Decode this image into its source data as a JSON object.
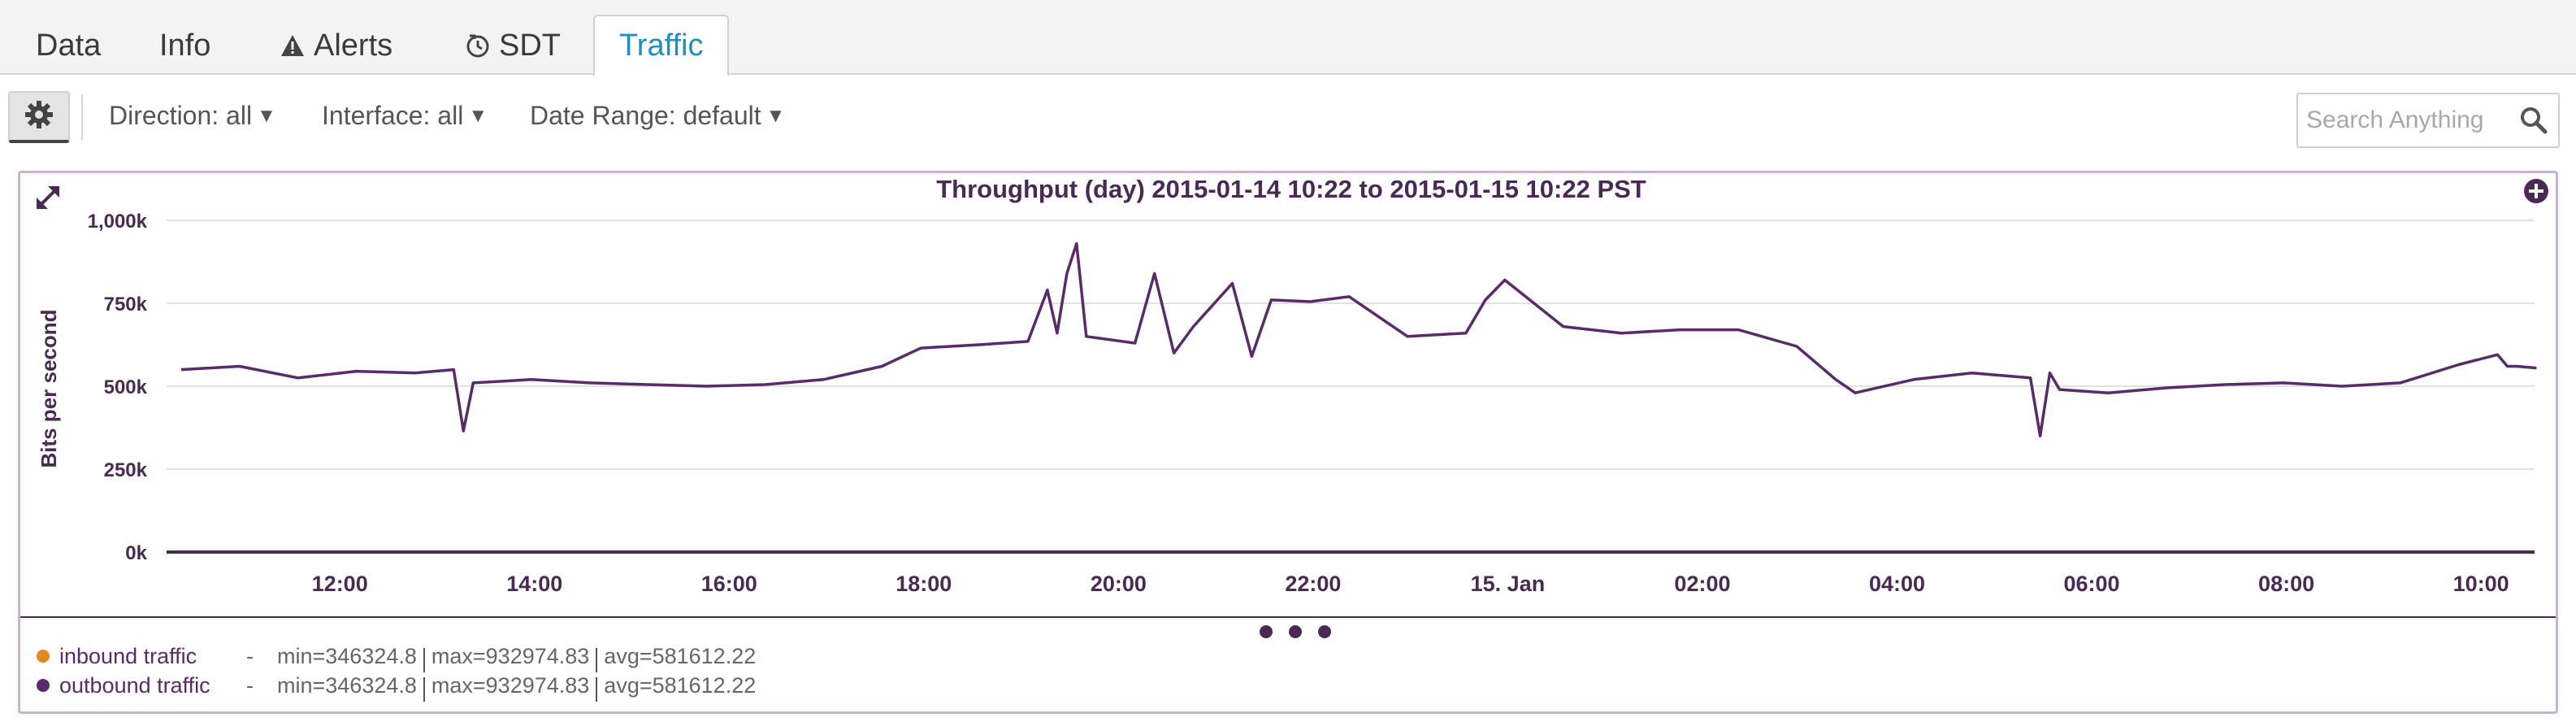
{
  "tabs": [
    {
      "label": "Data",
      "icon": null
    },
    {
      "label": "Info",
      "icon": null
    },
    {
      "label": "Alerts",
      "icon": "warning-icon"
    },
    {
      "label": "SDT",
      "icon": "clock-icon"
    },
    {
      "label": "Traffic",
      "icon": null,
      "active": true
    }
  ],
  "toolbar": {
    "settings_icon": "gear-icon",
    "direction": "Direction: all",
    "interface": "Interface: all",
    "date_range": "Date Range: default",
    "search_placeholder": "Search Anything"
  },
  "chart_panel": {
    "expand_icon": "expand-icon",
    "options_icon": "crosshair-plus-icon",
    "pager_dots": 3
  },
  "chart_data": {
    "type": "line",
    "title": "Throughput (day) 2015-01-14 10:22 to 2015-01-15 10:22 PST",
    "ylabel": "Bits per second",
    "xlabel": "",
    "y_ticks": [
      "0k",
      "250k",
      "500k",
      "750k",
      "1,000k"
    ],
    "ylim": [
      0,
      1000000
    ],
    "x_ticks": [
      "12:00",
      "14:00",
      "16:00",
      "18:00",
      "20:00",
      "22:00",
      "15. Jan",
      "02:00",
      "04:00",
      "06:00",
      "08:00",
      "10:00"
    ],
    "x_tick_hours": [
      12,
      14,
      16,
      18,
      20,
      22,
      24,
      26,
      28,
      30,
      32,
      34
    ],
    "xlim_hours": [
      10.22,
      34.55
    ],
    "grid": true,
    "line_color": "#5a2a6a",
    "series": [
      {
        "name": "outbound traffic",
        "x_hours": [
          10.37,
          10.97,
          11.57,
          12.17,
          12.77,
          13.17,
          13.27,
          13.37,
          13.97,
          14.57,
          15.17,
          15.77,
          16.37,
          16.97,
          17.57,
          17.97,
          18.57,
          19.07,
          19.27,
          19.37,
          19.47,
          19.57,
          19.67,
          20.17,
          20.37,
          20.57,
          20.77,
          21.17,
          21.37,
          21.57,
          21.97,
          22.37,
          22.97,
          23.57,
          23.77,
          23.97,
          24.57,
          25.17,
          25.77,
          26.37,
          26.97,
          27.37,
          27.57,
          28.17,
          28.77,
          29.37,
          29.47,
          29.57,
          29.67,
          30.17,
          30.77,
          31.37,
          31.97,
          32.57,
          33.17,
          33.77,
          34.17,
          34.27,
          34.37,
          34.57
        ],
        "values": [
          550000,
          560000,
          525000,
          545000,
          540000,
          550000,
          365000,
          510000,
          520000,
          510000,
          505000,
          500000,
          505000,
          520000,
          560000,
          615000,
          625000,
          635000,
          790000,
          660000,
          840000,
          930000,
          650000,
          630000,
          840000,
          600000,
          680000,
          810000,
          590000,
          760000,
          755000,
          770000,
          650000,
          660000,
          760000,
          820000,
          680000,
          660000,
          670000,
          670000,
          620000,
          520000,
          480000,
          520000,
          540000,
          525000,
          350000,
          540000,
          490000,
          480000,
          495000,
          505000,
          510000,
          500000,
          510000,
          565000,
          595000,
          560000,
          560000,
          555000
        ]
      }
    ],
    "legend": [
      {
        "name": "inbound traffic",
        "color": "#e08a1e",
        "min": "min=346324.8",
        "max": "max=932974.83",
        "avg": "avg=581612.22"
      },
      {
        "name": "outbound traffic",
        "color": "#5a2a6a",
        "min": "min=346324.8",
        "max": "max=932974.83",
        "avg": "avg=581612.22"
      }
    ]
  }
}
